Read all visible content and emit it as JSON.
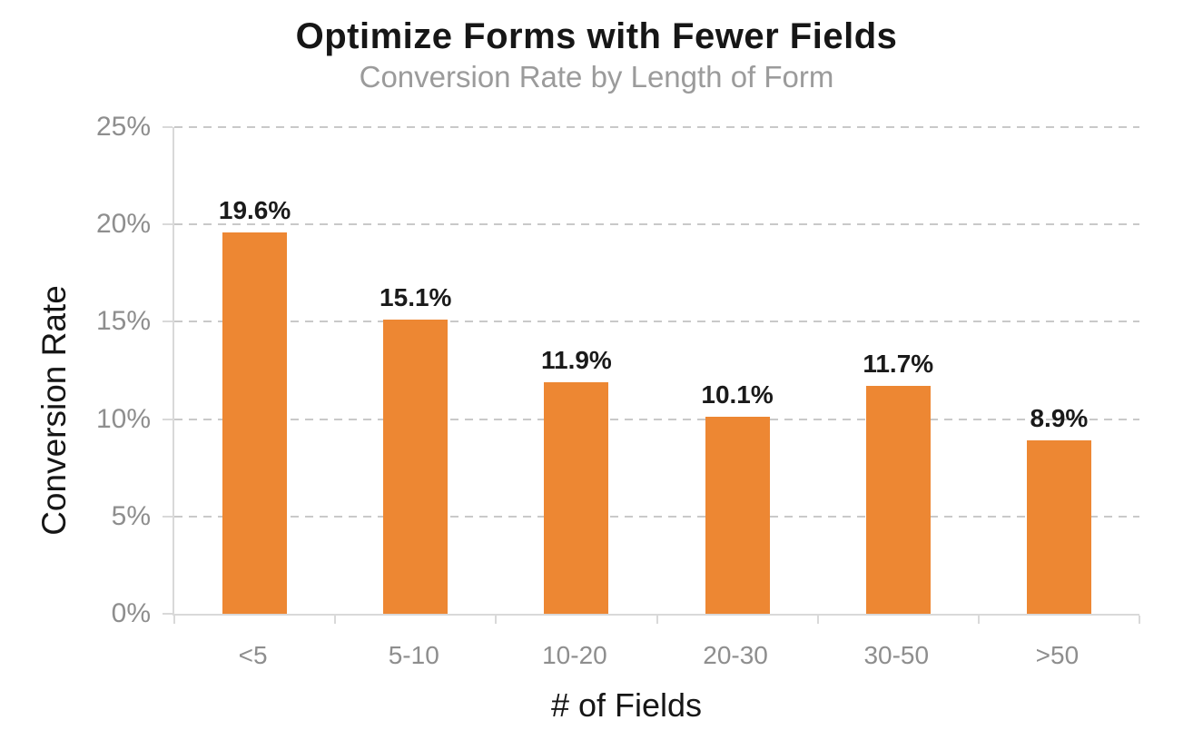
{
  "chart_data": {
    "type": "bar",
    "title": "Optimize Forms with Fewer Fields",
    "subtitle": "Conversion Rate by Length of Form",
    "xlabel": "# of Fields",
    "ylabel": "Conversion Rate",
    "categories": [
      "<5",
      "5-10",
      "10-20",
      "20-30",
      "30-50",
      ">50"
    ],
    "values": [
      19.6,
      15.1,
      11.9,
      10.1,
      11.7,
      8.9
    ],
    "value_labels": [
      "19.6%",
      "15.1%",
      "11.9%",
      "10.1%",
      "11.7%",
      "8.9%"
    ],
    "ylim": [
      0,
      25
    ],
    "yticks": [
      0,
      5,
      10,
      15,
      20,
      25
    ],
    "ytick_labels": [
      "0%",
      "5%",
      "10%",
      "15%",
      "20%",
      "25%"
    ],
    "grid": "dashed horizontal gridlines at each y tick",
    "legend_position": "none",
    "colors": {
      "bar": "#ED8733",
      "value_label": "#1A1A1A",
      "tick_label": "#8E8E8E",
      "gridline": "#C9C9C9",
      "axis_line": "#D9D9D9",
      "title": "#161616",
      "subtitle": "#9B9B9B"
    }
  }
}
